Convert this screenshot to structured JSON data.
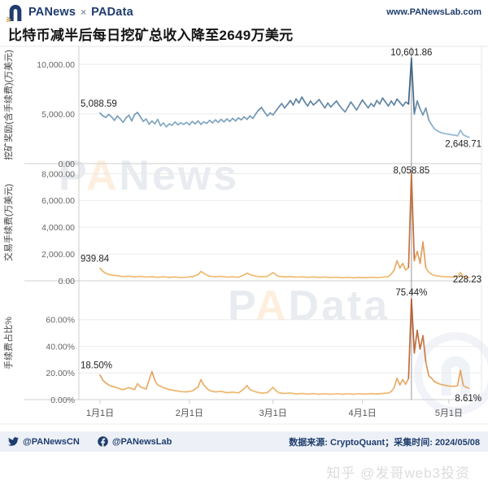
{
  "header": {
    "brand_left": "PANews",
    "brand_sep": "×",
    "brand_right": "PAData",
    "url": "www.PANewsLab.com"
  },
  "title": "比特币减半后每日挖矿总收入降至2649万美元",
  "watermarks": {
    "wm1": "PANews",
    "wm2": "PAData",
    "zhihu": "知乎 @发哥web3投资"
  },
  "footer": {
    "twitter": "@PANewsCN",
    "facebook": "@PANewsLab",
    "source": "数据来源: CryptoQuant；采集时间: 2024/05/08"
  },
  "colors": {
    "navy": "#1e3c6e",
    "orange": "#ef8200",
    "footer_bg": "#edf1f7",
    "markline": "#999999"
  },
  "x_axis": {
    "ticks": [
      {
        "day": 0,
        "label": "1月1日"
      },
      {
        "day": 31,
        "label": "2月1日"
      },
      {
        "day": 60,
        "label": "3月1日"
      },
      {
        "day": 91,
        "label": "4月1日"
      },
      {
        "day": 121,
        "label": "5月1日"
      }
    ],
    "markline_day": 108,
    "domain_days": [
      0,
      128
    ]
  },
  "chart_data": [
    {
      "type": "line",
      "ylabel": "挖矿奖励(含手续费)(万美元)",
      "ylim": [
        0,
        11800
      ],
      "yticks": [
        {
          "v": 0,
          "label": "0.00"
        },
        {
          "v": 5000,
          "label": "5,000.00"
        },
        {
          "v": 10000,
          "label": "10,000.00"
        }
      ],
      "color_low": "#93b9d4",
      "color_high": "#16395b",
      "color_domain": [
        3000,
        10602
      ],
      "annotations": {
        "first": "5,088.59",
        "max": "10,601.86",
        "last": "2,648.71"
      },
      "points": [
        [
          0,
          5088.59
        ],
        [
          1,
          4800
        ],
        [
          2,
          4650
        ],
        [
          3,
          4950
        ],
        [
          4,
          4700
        ],
        [
          5,
          4350
        ],
        [
          6,
          4800
        ],
        [
          7,
          4500
        ],
        [
          8,
          4150
        ],
        [
          9,
          4600
        ],
        [
          10,
          4864
        ],
        [
          11,
          4300
        ],
        [
          12,
          4950
        ],
        [
          13,
          5150
        ],
        [
          14,
          4700
        ],
        [
          15,
          4250
        ],
        [
          16,
          4500
        ],
        [
          17,
          3950
        ],
        [
          18,
          4300
        ],
        [
          19,
          4000
        ],
        [
          20,
          4450
        ],
        [
          21,
          3800
        ],
        [
          22,
          4100
        ],
        [
          23,
          3700
        ],
        [
          24,
          4000
        ],
        [
          25,
          3850
        ],
        [
          26,
          4200
        ],
        [
          27,
          3900
        ],
        [
          28,
          4100
        ],
        [
          29,
          3950
        ],
        [
          30,
          4150
        ],
        [
          31,
          3900
        ],
        [
          32,
          4250
        ],
        [
          33,
          4000
        ],
        [
          34,
          4300
        ],
        [
          35,
          3950
        ],
        [
          36,
          4200
        ],
        [
          37,
          4050
        ],
        [
          38,
          4350
        ],
        [
          39,
          4100
        ],
        [
          40,
          4400
        ],
        [
          41,
          4150
        ],
        [
          42,
          4450
        ],
        [
          43,
          4200
        ],
        [
          44,
          4500
        ],
        [
          45,
          4250
        ],
        [
          46,
          4550
        ],
        [
          47,
          4300
        ],
        [
          48,
          4600
        ],
        [
          49,
          4400
        ],
        [
          50,
          4700
        ],
        [
          51,
          4450
        ],
        [
          52,
          4800
        ],
        [
          53,
          4550
        ],
        [
          54,
          5000
        ],
        [
          55,
          5400
        ],
        [
          56,
          5650
        ],
        [
          57,
          5200
        ],
        [
          58,
          4800
        ],
        [
          59,
          5100
        ],
        [
          60,
          4900
        ],
        [
          61,
          5300
        ],
        [
          62,
          5700
        ],
        [
          63,
          6050
        ],
        [
          64,
          5600
        ],
        [
          65,
          5950
        ],
        [
          66,
          6350
        ],
        [
          67,
          5900
        ],
        [
          68,
          6500
        ],
        [
          69,
          6100
        ],
        [
          70,
          6700
        ],
        [
          71,
          6200
        ],
        [
          72,
          5800
        ],
        [
          73,
          6300
        ],
        [
          74,
          5900
        ],
        [
          75,
          6150
        ],
        [
          76,
          6450
        ],
        [
          77,
          6000
        ],
        [
          78,
          5600
        ],
        [
          79,
          6100
        ],
        [
          80,
          5700
        ],
        [
          81,
          6000
        ],
        [
          82,
          6300
        ],
        [
          83,
          5850
        ],
        [
          84,
          5500
        ],
        [
          85,
          5200
        ],
        [
          86,
          5700
        ],
        [
          87,
          6200
        ],
        [
          88,
          5800
        ],
        [
          89,
          5400
        ],
        [
          90,
          5900
        ],
        [
          91,
          6400
        ],
        [
          92,
          6000
        ],
        [
          93,
          5600
        ],
        [
          94,
          6050
        ],
        [
          95,
          5750
        ],
        [
          96,
          6350
        ],
        [
          97,
          6000
        ],
        [
          98,
          6600
        ],
        [
          99,
          6200
        ],
        [
          100,
          5800
        ],
        [
          101,
          6300
        ],
        [
          102,
          5900
        ],
        [
          103,
          6500
        ],
        [
          104,
          6150
        ],
        [
          105,
          5800
        ],
        [
          106,
          6200
        ],
        [
          107,
          6000
        ],
        [
          108,
          10601.86
        ],
        [
          109,
          5000
        ],
        [
          110,
          6300
        ],
        [
          111,
          5500
        ],
        [
          112,
          4900
        ],
        [
          113,
          5600
        ],
        [
          114,
          4400
        ],
        [
          115,
          3900
        ],
        [
          116,
          3500
        ],
        [
          117,
          3300
        ],
        [
          118,
          3150
        ],
        [
          119,
          3050
        ],
        [
          120,
          3000
        ],
        [
          121,
          2950
        ],
        [
          122,
          2900
        ],
        [
          123,
          2850
        ],
        [
          124,
          2800
        ],
        [
          125,
          3350
        ],
        [
          126,
          2900
        ],
        [
          127,
          2750
        ],
        [
          128,
          2648.71
        ]
      ]
    },
    {
      "type": "line",
      "ylabel": "交易手续费(万美元)",
      "ylim": [
        0,
        8700
      ],
      "yticks": [
        {
          "v": 0,
          "label": "0.00"
        },
        {
          "v": 2000,
          "label": "2,000.00"
        },
        {
          "v": 4000,
          "label": "4,000.00"
        },
        {
          "v": 6000,
          "label": "6,000.00"
        },
        {
          "v": 8000,
          "label": "8,000.00"
        }
      ],
      "color_low": "#f2bd72",
      "color_high": "#9e3418",
      "color_domain": [
        200,
        8059
      ],
      "annotations": {
        "first": "939.84",
        "max": "8,058.85",
        "last": "228.23"
      },
      "points": [
        [
          0,
          939.84
        ],
        [
          1,
          700
        ],
        [
          2,
          560
        ],
        [
          3,
          480
        ],
        [
          4,
          430
        ],
        [
          5,
          400
        ],
        [
          6,
          380
        ],
        [
          7,
          340
        ],
        [
          8,
          310
        ],
        [
          10,
          350
        ],
        [
          12,
          290
        ],
        [
          14,
          330
        ],
        [
          16,
          270
        ],
        [
          18,
          310
        ],
        [
          20,
          260
        ],
        [
          22,
          300
        ],
        [
          24,
          250
        ],
        [
          26,
          290
        ],
        [
          28,
          240
        ],
        [
          30,
          270
        ],
        [
          32,
          310
        ],
        [
          34,
          450
        ],
        [
          35,
          700
        ],
        [
          36,
          560
        ],
        [
          37,
          430
        ],
        [
          38,
          340
        ],
        [
          40,
          300
        ],
        [
          42,
          330
        ],
        [
          44,
          270
        ],
        [
          46,
          300
        ],
        [
          48,
          260
        ],
        [
          50,
          440
        ],
        [
          51,
          570
        ],
        [
          52,
          460
        ],
        [
          54,
          340
        ],
        [
          56,
          300
        ],
        [
          58,
          330
        ],
        [
          60,
          610
        ],
        [
          61,
          440
        ],
        [
          62,
          330
        ],
        [
          64,
          290
        ],
        [
          66,
          310
        ],
        [
          68,
          270
        ],
        [
          70,
          300
        ],
        [
          72,
          260
        ],
        [
          74,
          290
        ],
        [
          76,
          250
        ],
        [
          78,
          280
        ],
        [
          80,
          240
        ],
        [
          82,
          270
        ],
        [
          84,
          230
        ],
        [
          86,
          260
        ],
        [
          88,
          220
        ],
        [
          90,
          250
        ],
        [
          92,
          230
        ],
        [
          94,
          260
        ],
        [
          96,
          240
        ],
        [
          98,
          270
        ],
        [
          100,
          310
        ],
        [
          101,
          500
        ],
        [
          102,
          800
        ],
        [
          103,
          1500
        ],
        [
          104,
          950
        ],
        [
          105,
          1300
        ],
        [
          106,
          800
        ],
        [
          107,
          1000
        ],
        [
          108,
          8058.85
        ],
        [
          109,
          1500
        ],
        [
          110,
          2200
        ],
        [
          111,
          1300
        ],
        [
          112,
          2900
        ],
        [
          113,
          950
        ],
        [
          114,
          650
        ],
        [
          115,
          480
        ],
        [
          116,
          400
        ],
        [
          118,
          330
        ],
        [
          120,
          300
        ],
        [
          122,
          280
        ],
        [
          124,
          310
        ],
        [
          125,
          620
        ],
        [
          126,
          310
        ],
        [
          127,
          260
        ],
        [
          128,
          228.23
        ]
      ]
    },
    {
      "type": "line",
      "ylabel": "手续费占比%",
      "ylim": [
        0,
        85
      ],
      "yticks": [
        {
          "v": 0,
          "label": "0.00%"
        },
        {
          "v": 20,
          "label": "20.00%"
        },
        {
          "v": 40,
          "label": "40.00%"
        },
        {
          "v": 60,
          "label": "60.00%"
        }
      ],
      "color_low": "#f2bd72",
      "color_high": "#9e3418",
      "color_domain": [
        3,
        75.44
      ],
      "annotations": {
        "first": "18.50%",
        "max": "75.44%",
        "last": "8.61%"
      },
      "points": [
        [
          0,
          18.5
        ],
        [
          1,
          14.5
        ],
        [
          2,
          12.5
        ],
        [
          3,
          11
        ],
        [
          4,
          10
        ],
        [
          5,
          9.5
        ],
        [
          6,
          8.8
        ],
        [
          7,
          8
        ],
        [
          8,
          7.5
        ],
        [
          10,
          9
        ],
        [
          12,
          7.5
        ],
        [
          13,
          12
        ],
        [
          14,
          9.5
        ],
        [
          16,
          8
        ],
        [
          18,
          21
        ],
        [
          19,
          14.5
        ],
        [
          20,
          11
        ],
        [
          22,
          9
        ],
        [
          24,
          7.5
        ],
        [
          26,
          6.8
        ],
        [
          28,
          6
        ],
        [
          30,
          5.8
        ],
        [
          32,
          6.5
        ],
        [
          34,
          9.5
        ],
        [
          35,
          15
        ],
        [
          36,
          11
        ],
        [
          37,
          8.5
        ],
        [
          38,
          6.8
        ],
        [
          40,
          5.8
        ],
        [
          42,
          6.2
        ],
        [
          44,
          5.2
        ],
        [
          46,
          5.6
        ],
        [
          48,
          5
        ],
        [
          50,
          8.2
        ],
        [
          51,
          10.5
        ],
        [
          52,
          7.5
        ],
        [
          54,
          5.8
        ],
        [
          56,
          4.8
        ],
        [
          58,
          5.2
        ],
        [
          60,
          9.2
        ],
        [
          61,
          6.8
        ],
        [
          62,
          5.2
        ],
        [
          64,
          4.6
        ],
        [
          66,
          5
        ],
        [
          68,
          4.2
        ],
        [
          70,
          4.6
        ],
        [
          72,
          4.1
        ],
        [
          74,
          4.5
        ],
        [
          76,
          4
        ],
        [
          78,
          4.4
        ],
        [
          80,
          4
        ],
        [
          82,
          4.4
        ],
        [
          84,
          4
        ],
        [
          86,
          4.4
        ],
        [
          88,
          4
        ],
        [
          90,
          4.4
        ],
        [
          92,
          4.1
        ],
        [
          94,
          4.5
        ],
        [
          96,
          4.2
        ],
        [
          98,
          4.6
        ],
        [
          100,
          5
        ],
        [
          101,
          6
        ],
        [
          102,
          9
        ],
        [
          103,
          16
        ],
        [
          104,
          11
        ],
        [
          105,
          15
        ],
        [
          106,
          11.5
        ],
        [
          107,
          16
        ],
        [
          108,
          75.44
        ],
        [
          109,
          35
        ],
        [
          110,
          52
        ],
        [
          111,
          38
        ],
        [
          112,
          48
        ],
        [
          113,
          28
        ],
        [
          114,
          18
        ],
        [
          115,
          16
        ],
        [
          116,
          13.5
        ],
        [
          117,
          12.5
        ],
        [
          118,
          11.5
        ],
        [
          119,
          11
        ],
        [
          120,
          10.5
        ],
        [
          121,
          10.2
        ],
        [
          122,
          10
        ],
        [
          123,
          10
        ],
        [
          124,
          10.5
        ],
        [
          125,
          22
        ],
        [
          126,
          10.5
        ],
        [
          127,
          9.2
        ],
        [
          128,
          8.61
        ]
      ]
    }
  ]
}
